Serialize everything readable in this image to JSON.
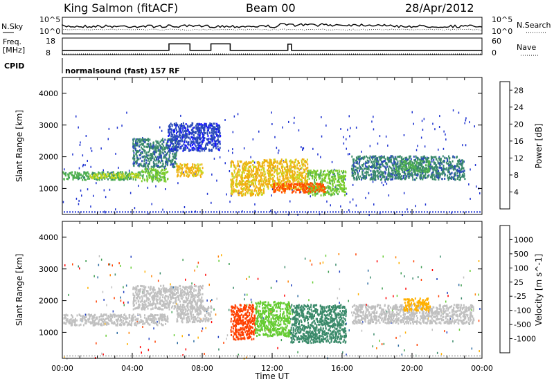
{
  "header": {
    "station": "King Salmon (fitACF)",
    "beam": "Beam 00",
    "date": "28/Apr/2012"
  },
  "noise_panel": {
    "left_label": "N.Sky",
    "right_label": "N.Search",
    "left_ticks": [
      "10^5",
      "10^0"
    ],
    "right_ticks": [
      "10^5",
      "10^0"
    ]
  },
  "freq_panel": {
    "left_label_line1": "Freq.",
    "left_label_line2": "[MHz]",
    "right_label": "Nave",
    "left_ticks": [
      "18",
      "8"
    ],
    "right_ticks": [
      "60",
      "0"
    ],
    "freq_series": {
      "x_hours": [
        0,
        6.1,
        6.1,
        7.3,
        7.3,
        8.5,
        8.5,
        9.6,
        9.6,
        12.9,
        12.9,
        13.1,
        13.1,
        24
      ],
      "y_mhz": [
        10.6,
        10.6,
        14.5,
        14.5,
        10.6,
        10.6,
        14.5,
        14.5,
        10.6,
        10.6,
        14.3,
        14.3,
        10.6,
        10.6
      ]
    }
  },
  "cpid": {
    "label": "CPID",
    "text": "normalsound (fast) 157 RF"
  },
  "chart_data": [
    {
      "type": "heatmap",
      "name": "Power",
      "ylabel": "Slant Range [km]",
      "xlabel": "Time UT",
      "xlim": [
        0,
        24
      ],
      "ylim": [
        180,
        4500
      ],
      "x_ticks": [
        "00:00",
        "04:00",
        "08:00",
        "12:00",
        "16:00",
        "20:00",
        "00:00"
      ],
      "y_ticks": [
        1000,
        2000,
        3000,
        4000
      ],
      "colorbar": {
        "label": "Power [dB]",
        "ticks": [
          4,
          8,
          12,
          16,
          20,
          24,
          28
        ],
        "range": [
          0,
          30
        ],
        "colors": [
          "#1414ff",
          "#2a4ab8",
          "#3a8a6a",
          "#4fb04f",
          "#7ccd2e",
          "#c8d820",
          "#f0b010",
          "#ff8000",
          "#ff4a00",
          "#ff0000"
        ]
      },
      "regions": [
        {
          "t0": 0.0,
          "t1": 4.5,
          "r_lo": 1300,
          "r_hi": 1550,
          "power": 10
        },
        {
          "t0": 1.5,
          "t1": 4.5,
          "r_lo": 1350,
          "r_hi": 1500,
          "power": 16
        },
        {
          "t0": 4.5,
          "t1": 6.0,
          "r_lo": 1250,
          "r_hi": 1650,
          "power": 12
        },
        {
          "t0": 6.5,
          "t1": 8.0,
          "r_lo": 1400,
          "r_hi": 1800,
          "power": 18
        },
        {
          "t0": 4.0,
          "t1": 6.5,
          "r_lo": 1700,
          "r_hi": 2600,
          "power": 6
        },
        {
          "t0": 6.0,
          "t1": 9.0,
          "r_lo": 2200,
          "r_hi": 3100,
          "power": 4
        },
        {
          "t0": 9.6,
          "t1": 11.5,
          "r_lo": 800,
          "r_hi": 1900,
          "power": 18
        },
        {
          "t0": 11.5,
          "t1": 14.0,
          "r_lo": 1000,
          "r_hi": 1950,
          "power": 20
        },
        {
          "t0": 14.0,
          "t1": 16.2,
          "r_lo": 800,
          "r_hi": 1600,
          "power": 14
        },
        {
          "t0": 12.0,
          "t1": 15.0,
          "r_lo": 900,
          "r_hi": 1200,
          "power": 24
        },
        {
          "t0": 16.5,
          "t1": 23.0,
          "r_lo": 1300,
          "r_hi": 2050,
          "power": 6
        },
        {
          "t0": 19.0,
          "t1": 21.0,
          "r_lo": 1550,
          "r_hi": 1900,
          "power": 10
        }
      ]
    },
    {
      "type": "heatmap",
      "name": "Velocity",
      "ylabel": "Slant Range [km]",
      "xlabel": "Time UT",
      "xlim": [
        0,
        24
      ],
      "ylim": [
        180,
        4500
      ],
      "x_ticks": [
        "00:00",
        "04:00",
        "08:00",
        "12:00",
        "16:00",
        "20:00",
        "00:00"
      ],
      "y_ticks": [
        1000,
        2000,
        3000,
        4000
      ],
      "colorbar": {
        "label": "Velocity [m s^-1]",
        "ticks": [
          "1000",
          "500",
          "100",
          "25",
          "-25",
          "-100",
          "-500",
          "-1000"
        ],
        "colors": [
          "#2040c0",
          "#2a6aa0",
          "#3a8a6a",
          "#3c9c50",
          "#66cc33",
          "#c0c0c0",
          "#ffb000",
          "#ff8000",
          "#ff4000",
          "#ff0000"
        ]
      },
      "regions": [
        {
          "t0": 0.0,
          "t1": 6.0,
          "r_lo": 1250,
          "r_hi": 1600,
          "vel": 0
        },
        {
          "t0": 6.5,
          "t1": 8.5,
          "r_lo": 1350,
          "r_hi": 1850,
          "vel": 0
        },
        {
          "t0": 4.0,
          "t1": 8.0,
          "r_lo": 1750,
          "r_hi": 2500,
          "vel": 0
        },
        {
          "t0": 9.6,
          "t1": 11.0,
          "r_lo": 800,
          "r_hi": 1900,
          "vel": -500
        },
        {
          "t0": 11.0,
          "t1": 13.0,
          "r_lo": 900,
          "r_hi": 2000,
          "vel": 100
        },
        {
          "t0": 13.0,
          "t1": 16.2,
          "r_lo": 700,
          "r_hi": 1900,
          "vel": 500
        },
        {
          "t0": 16.5,
          "t1": 23.5,
          "r_lo": 1300,
          "r_hi": 1900,
          "vel": 0
        },
        {
          "t0": 19.5,
          "t1": 21.0,
          "r_lo": 1700,
          "r_hi": 2100,
          "vel": -100
        }
      ]
    }
  ]
}
